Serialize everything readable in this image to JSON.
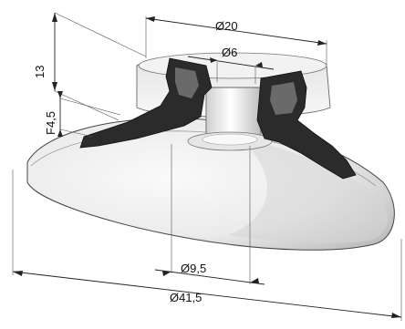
{
  "drawing": {
    "dimensions": {
      "top_diameter": "Ø20",
      "bore_diameter": "Ø6",
      "height": "13",
      "lip_height": "F4,5",
      "neck_diameter": "Ø9,5",
      "cup_diameter": "Ø41,5"
    },
    "colors": {
      "background": "#ffffff",
      "rubber": "#2b2b2b",
      "cup_light": "#f4f4f4",
      "cup_shadow": "#bcbcbc",
      "line": "#222222"
    }
  }
}
